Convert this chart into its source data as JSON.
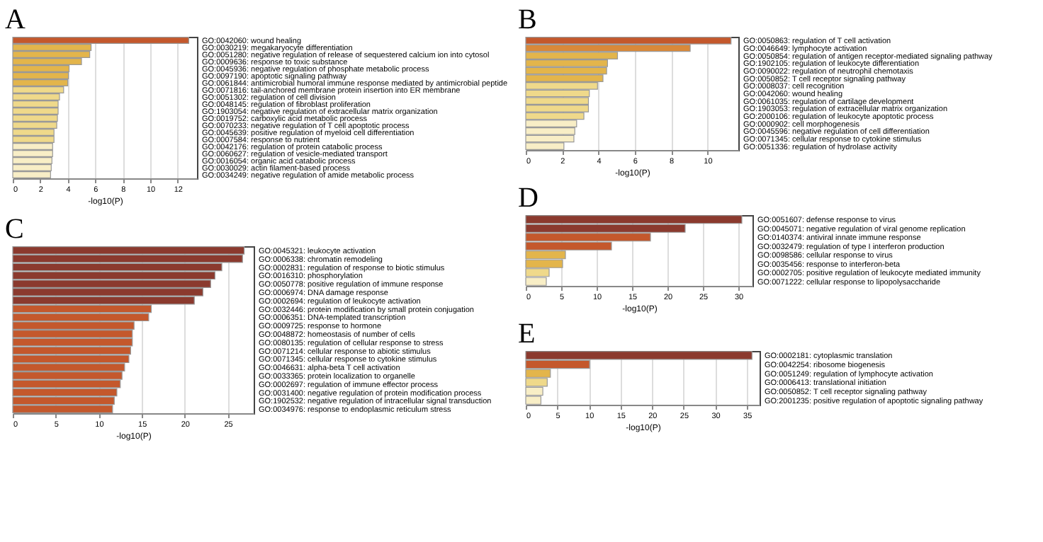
{
  "chart_data": [
    {
      "type": "bar",
      "orientation": "horizontal",
      "title": "A",
      "xlabel": "-log10(P)",
      "grid": "x",
      "categories": [
        "GO:0042060: wound healing",
        "GO:0030219: megakaryocyte differentiation",
        "GO:0051280: negative regulation of release of sequestered calcium ion into cytosol",
        "GO:0009636: response to toxic substance",
        "GO:0045936: negative regulation of phosphate metabolic process",
        "GO:0097190: apoptotic signaling pathway",
        "GO:0061844: antimicrobial humoral immune response mediated by antimicrobial peptide",
        "GO:0071816: tail-anchored membrane protein insertion into ER membrane",
        "GO:0051302: regulation of cell division",
        "GO:0048145: regulation of fibroblast proliferation",
        "GO:1903054: negative regulation of extracellular matrix organization",
        "GO:0019752: carboxylic acid metabolic process",
        "GO:0070233: negative regulation of T cell apoptotic process",
        "GO:0045639: positive regulation of myeloid cell differentiation",
        "GO:0007584: response to nutrient",
        "GO:0042176: regulation of protein catabolic process",
        "GO:0060627: regulation of vesicle-mediated transport",
        "GO:0016054: organic acid catabolic process",
        "GO:0030029: actin filament-based process",
        "GO:0034249: negative regulation of amide metabolic process"
      ],
      "values": [
        12.8,
        5.7,
        5.6,
        5.0,
        4.1,
        4.05,
        4.0,
        3.7,
        3.4,
        3.3,
        3.3,
        3.25,
        3.2,
        3.0,
        3.0,
        2.9,
        2.9,
        2.85,
        2.8,
        2.75
      ],
      "colors": [
        "#c4582c",
        "#e3b54b",
        "#e3b54b",
        "#e3b54b",
        "#e3b54b",
        "#e3b54b",
        "#e3b54b",
        "#efd98a",
        "#efd98a",
        "#efd98a",
        "#efd98a",
        "#efd98a",
        "#efd98a",
        "#efd98a",
        "#efd98a",
        "#f8eec6",
        "#f8eec6",
        "#f8eec6",
        "#f8eec6",
        "#f8eec6"
      ],
      "xlim": [
        0,
        13.4
      ],
      "xticks": [
        0,
        2,
        4,
        6,
        8,
        10,
        12
      ]
    },
    {
      "type": "bar",
      "orientation": "horizontal",
      "title": "C",
      "xlabel": "-log10(P)",
      "grid": "x",
      "categories": [
        "GO:0045321: leukocyte activation",
        "GO:0006338: chromatin remodeling",
        "GO:0002831: regulation of response to biotic stimulus",
        "GO:0016310: phosphorylation",
        "GO:0050778: positive regulation of immune response",
        "GO:0006974: DNA damage response",
        "GO:0002694: regulation of leukocyte activation",
        "GO:0032446: protein modification by small protein conjugation",
        "GO:0006351: DNA-templated transcription",
        "GO:0009725: response to hormone",
        "GO:0048872: homeostasis of number of cells",
        "GO:0080135: regulation of cellular response to stress",
        "GO:0071214: cellular response to abiotic stimulus",
        "GO:0071345: cellular response to cytokine stimulus",
        "GO:0046631: alpha-beta T cell activation",
        "GO:0033365: protein localization to organelle",
        "GO:0002697: regulation of immune effector process",
        "GO:0031400: negative regulation of protein modification process",
        "GO:1902532: negative regulation of intracellular signal transduction",
        "GO:0034976: response to endoplasmic reticulum stress"
      ],
      "values": [
        26.9,
        26.7,
        24.3,
        23.5,
        23.0,
        22.1,
        21.1,
        16.1,
        15.8,
        14.1,
        13.9,
        13.9,
        13.7,
        13.5,
        13.0,
        12.7,
        12.5,
        12.1,
        11.8,
        11.6
      ],
      "colors": [
        "#8b3a2e",
        "#8b3a2e",
        "#8b3a2e",
        "#8b3a2e",
        "#8b3a2e",
        "#8b3a2e",
        "#8b3a2e",
        "#c4582c",
        "#c4582c",
        "#c4582c",
        "#c4582c",
        "#c4582c",
        "#c4582c",
        "#c4582c",
        "#c4582c",
        "#c4582c",
        "#c4582c",
        "#c4582c",
        "#c4582c",
        "#c4582c"
      ],
      "xlim": [
        0,
        28
      ],
      "xticks": [
        0,
        5,
        10,
        15,
        20,
        25
      ]
    },
    {
      "type": "bar",
      "orientation": "horizontal",
      "title": "B",
      "xlabel": "-log10(P)",
      "grid": "x",
      "categories": [
        "GO:0050863: regulation of T cell activation",
        "GO:0046649: lymphocyte activation",
        "GO:0050854: regulation of antigen receptor-mediated signaling pathway",
        "GO:1902105: regulation of leukocyte differentiation",
        "GO:0090022: regulation of neutrophil chemotaxis",
        "GO:0050852: T cell receptor signaling pathway",
        "GO:0008037: cell recognition",
        "GO:0042060: wound healing",
        "GO:0061035: regulation of cartilage development",
        "GO:1903053: regulation of extracellular matrix organization",
        "GO:2000106: regulation of leukocyte apoptotic process",
        "GO:0000902: cell morphogenesis",
        "GO:0045596: negative regulation of cell differentiation",
        "GO:0071345: cellular response to cytokine stimulus",
        "GO:0051336: regulation of hydrolase activity"
      ],
      "values": [
        11.3,
        9.05,
        5.05,
        4.5,
        4.45,
        4.25,
        3.95,
        3.5,
        3.45,
        3.45,
        3.2,
        2.8,
        2.7,
        2.65,
        2.1
      ],
      "colors": [
        "#c4582c",
        "#d9893a",
        "#e3b54b",
        "#e3b54b",
        "#e3b54b",
        "#e3b54b",
        "#efd98a",
        "#efd98a",
        "#efd98a",
        "#efd98a",
        "#efd98a",
        "#f8eec6",
        "#f8eec6",
        "#f8eec6",
        "#f8eec6"
      ],
      "xlim": [
        0,
        11.7
      ],
      "xticks": [
        0,
        2,
        4,
        6,
        8,
        10
      ]
    },
    {
      "type": "bar",
      "orientation": "horizontal",
      "title": "D",
      "xlabel": "-log10(P)",
      "grid": "x",
      "categories": [
        "GO:0051607: defense response to virus",
        "GO:0045071: negative regulation of viral genome replication",
        "GO:0140374: antiviral innate immune response",
        "GO:0032479: regulation of type I interferon production",
        "GO:0098586: cellular response to virus",
        "GO:0035456: response to interferon-beta",
        "GO:0002705: positive regulation of leukocyte mediated immunity",
        "GO:0071222: cellular response to lipopolysaccharide"
      ],
      "values": [
        30.5,
        22.5,
        17.6,
        12.1,
        5.6,
        5.2,
        3.3,
        2.9
      ],
      "colors": [
        "#8b3a2e",
        "#8b3a2e",
        "#c4582c",
        "#c4582c",
        "#e3b54b",
        "#e3b54b",
        "#efd98a",
        "#f8eec6"
      ],
      "xlim": [
        0,
        32
      ],
      "xticks": [
        0,
        5,
        10,
        15,
        20,
        25,
        30
      ]
    },
    {
      "type": "bar",
      "orientation": "horizontal",
      "title": "E",
      "xlabel": "-log10(P)",
      "grid": "x",
      "categories": [
        "GO:0002181: cytoplasmic translation",
        "GO:0042254: ribosome biogenesis",
        "GO:0051249: regulation of lymphocyte activation",
        "GO:0006413: translational initiation",
        "GO:0050852: T cell receptor signaling pathway",
        "GO:2001235: positive regulation of apoptotic signaling pathway"
      ],
      "values": [
        35.8,
        10.1,
        3.9,
        3.4,
        2.7,
        2.4
      ],
      "colors": [
        "#8b3a2e",
        "#c4582c",
        "#e3b54b",
        "#efd98a",
        "#f8eec6",
        "#f8eec6"
      ],
      "xlim": [
        0,
        37
      ],
      "xticks": [
        0,
        5,
        10,
        15,
        20,
        25,
        30,
        35
      ]
    }
  ]
}
